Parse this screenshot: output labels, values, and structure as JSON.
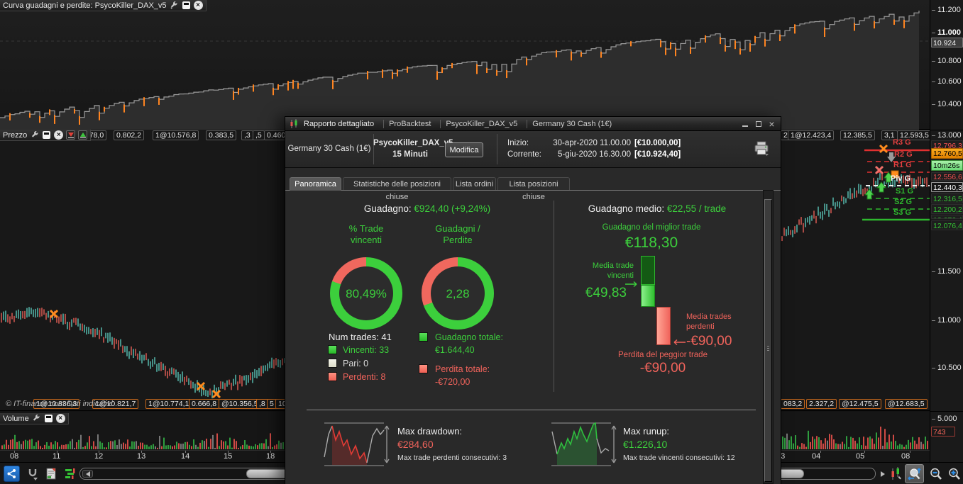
{
  "equity": {
    "title": "Curva guadagni e perdite: PsycoKiller_DAX_v5",
    "ticks": [
      "11.200",
      "11.000",
      "10.800",
      "10.600",
      "10.400"
    ],
    "current": "10.924"
  },
  "price": {
    "label": "Prezzo",
    "tags_left": [
      ".878,0",
      "0.802,2",
      "1@10.576,8",
      "0.383,5",
      ",3",
      ",5",
      "0.460,7"
    ],
    "tags_top_right": [
      "2",
      "1@12.423,4",
      "12.385,5",
      "3,1",
      "12.593,5"
    ],
    "tags_bottom_left": [
      "1@10.836,3",
      "1@10.821,7",
      "1@10.774,1",
      "0.666,8",
      "@10.356,5",
      ",8",
      "5",
      "10.406,3",
      "1"
    ],
    "tags_bottom_right": [
      "083,2",
      "2.327,2",
      "@12.475,5",
      "@12.683,5"
    ],
    "copyright": "© IT-finance.com Dati indicativi",
    "pivots": [
      "R3 G",
      "R2 G",
      "R1 G",
      "Piv G",
      "S1 G",
      "S2 G",
      "S3 G"
    ],
    "axis": {
      "top": "13.000",
      "hidden": "12.796,3",
      "last": "12.760,5",
      "countdown": "10m26s",
      "low": "12.556,6",
      "open": "12.440,3",
      "g1": "12.316,5",
      "g2": "12.200,2",
      "g3": "12.076,4",
      "t1": "11.500",
      "t2": "11.000",
      "t3": "10.500"
    }
  },
  "volume": {
    "label": "Volume",
    "tick": "5.000",
    "current": "743"
  },
  "time_axis": {
    "left": [
      "08",
      "11",
      "12",
      "13",
      "14",
      "15",
      "18"
    ],
    "right": [
      "03",
      "04",
      "05",
      "08"
    ]
  },
  "dialog": {
    "title": [
      "Rapporto dettagliato",
      "ProBacktest",
      "PsycoKiller_DAX_v5",
      "Germany 30 Cash (1€)"
    ],
    "info": {
      "instrument": "Germany 30 Cash (1€)",
      "system": "PsycoKiller_DAX_v5",
      "timeframe": "15 Minuti",
      "modify": "Modifica",
      "start_label": "Inizio:",
      "start_date": "30-apr-2020 11.00.00",
      "start_value": "[€10.000,00]",
      "current_label": "Corrente:",
      "current_date": "5-giu-2020 16.30.00",
      "current_value": "[€10.924,40]"
    },
    "tabs": [
      "Panoramica",
      "Statistiche delle posizioni chiuse",
      "Lista ordini",
      "Lista posizioni chiuse"
    ],
    "overview": {
      "gain_label": "Guadagno:",
      "gain_value": "€924,40 (+9,24%)",
      "donut_win": {
        "t1": "% Trade",
        "t2": "vincenti",
        "value": "80,49%",
        "green_pct": 80.49
      },
      "donut_gl": {
        "t1": "Guadagni /",
        "t2": "Perdite",
        "value": "2,28",
        "green_pct": 69.5
      },
      "num_trades": "Num trades: 41",
      "winners": "Vincenti: 33",
      "even": "Pari: 0",
      "losers": "Perdenti: 8",
      "total_gain_label": "Guadagno totale:",
      "total_gain": "€1.644,40",
      "total_loss_label": "Perdita totale:",
      "total_loss": "-€720,00",
      "avg_label": "Guadagno medio:",
      "avg_value": "€22,55 / trade",
      "best_label": "Guadagno del miglior trade",
      "best_value": "€118,30",
      "avg_win_l1": "Media trade",
      "avg_win_l2": "vincenti",
      "avg_win": "€49,83",
      "avg_loss_l1": "Media trades",
      "avg_loss_l2": "perdenti",
      "avg_loss": "-€90,00",
      "worst_label": "Perdita del peggior trade",
      "worst_value": "-€90,00",
      "dd_label": "Max drawdown:",
      "dd_value": "€284,60",
      "dd_sub": "Max trade perdenti consecutivi:  3",
      "ru_label": "Max runup:",
      "ru_value": "€1.226,10",
      "ru_sub": "Max trade vincenti consecutivi: 12"
    }
  }
}
